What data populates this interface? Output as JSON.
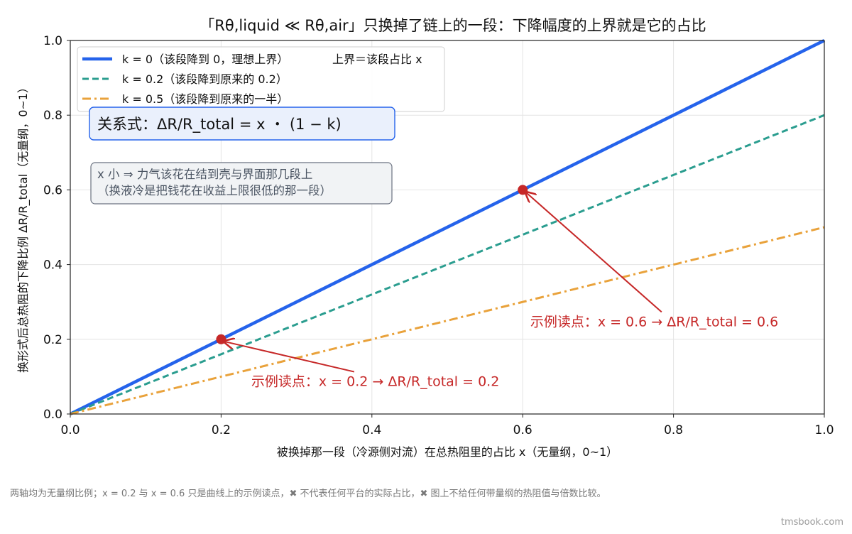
{
  "chart_data": {
    "type": "line",
    "title": "「Rθ,liquid ≪ Rθ,air」只换掉了链上的一段：下降幅度的上界就是它的占比",
    "xlabel": "被换掉那一段（冷源侧对流）在总热阻里的占比 x（无量纲，0~1）",
    "ylabel": "换形式后总热阻的下降比例 ΔR/R_total（无量纲，0~1）",
    "xlim": [
      0,
      1
    ],
    "ylim": [
      0,
      1
    ],
    "x_ticks": [
      0.0,
      0.2,
      0.4,
      0.6,
      0.8,
      1.0
    ],
    "y_ticks": [
      0.0,
      0.2,
      0.4,
      0.6,
      0.8,
      1.0
    ],
    "x_tick_labels": [
      "0.0",
      "0.2",
      "0.4",
      "0.6",
      "0.8",
      "1.0"
    ],
    "y_tick_labels": [
      "0.0",
      "0.2",
      "0.4",
      "0.6",
      "0.8",
      "1.0"
    ],
    "grid": true,
    "legend_position": "top-left",
    "series": [
      {
        "name": "k = 0（该段降到 0，理想上界）",
        "extra_label": "上界＝该段占比 x",
        "x": [
          0,
          1
        ],
        "y": [
          0,
          1.0
        ],
        "color": "#2563eb",
        "style": "solid"
      },
      {
        "name": "k = 0.2（该段降到原来的 0.2）",
        "x": [
          0,
          1
        ],
        "y": [
          0,
          0.8
        ],
        "color": "#2a9d8f",
        "style": "dashed"
      },
      {
        "name": "k = 0.5（该段降到原来的一半）",
        "x": [
          0,
          1
        ],
        "y": [
          0,
          0.5
        ],
        "color": "#e9a23b",
        "style": "dashdot"
      }
    ],
    "highlight_points": [
      {
        "x": 0.2,
        "y": 0.2,
        "color": "#c62828"
      },
      {
        "x": 0.6,
        "y": 0.6,
        "color": "#c62828"
      }
    ],
    "annotations": [
      {
        "text": "示例读点：x = 0.2 → ΔR/R_total = 0.2",
        "target_x": 0.2,
        "target_y": 0.2,
        "text_x": 0.24,
        "text_y": 0.075
      },
      {
        "text": "示例读点：x = 0.6 → ΔR/R_total = 0.6",
        "target_x": 0.6,
        "target_y": 0.6,
        "text_x": 0.61,
        "text_y": 0.235
      }
    ],
    "formula_box": "关系式：ΔR/R_total = x ・ (1 − k)",
    "note_box": [
      "x 小 ⇒ 力气该花在结到壳与界面那几段上",
      "（换液冷是把钱花在收益上限很低的那一段）"
    ]
  },
  "footer": {
    "note": "两轴均为无量纲比例；x = 0.2 与 x = 0.6 只是曲线上的示例读点，✖ 不代表任何平台的实际占比，✖ 图上不给任何带量纲的热阻值与倍数比较。",
    "watermark": "tmsbook.com"
  }
}
